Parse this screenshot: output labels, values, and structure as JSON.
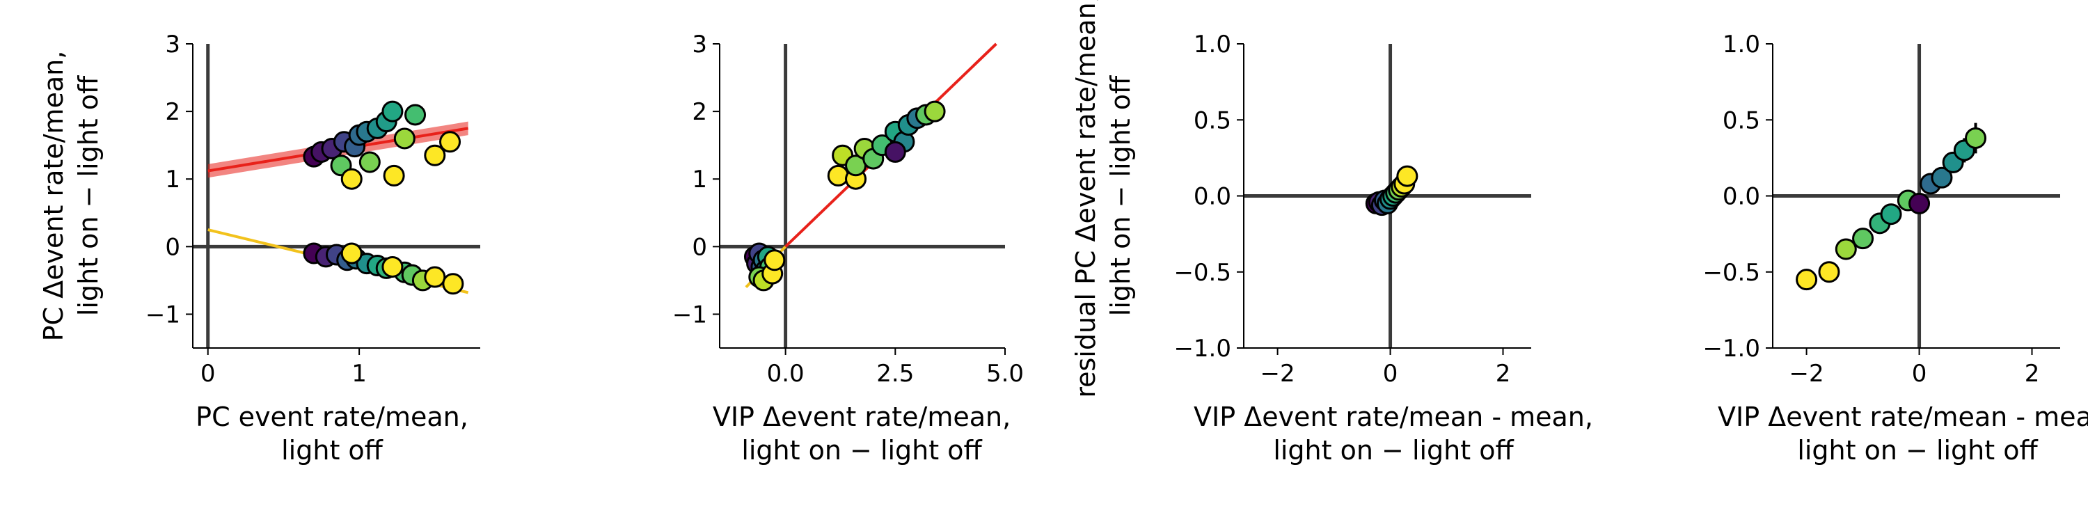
{
  "chart_data": [
    {
      "type": "scatter",
      "xlabel": [
        "PC event rate/mean,",
        "light off"
      ],
      "ylabel": [
        "PC  Δevent rate/mean,",
        "light on − light off"
      ],
      "xlim": [
        -0.1,
        1.8
      ],
      "ylim": [
        -1.5,
        3.0
      ],
      "xticks": [
        0,
        1
      ],
      "xticklabels": [
        "0",
        "1"
      ],
      "yticks": [
        -1,
        0,
        1,
        2,
        3
      ],
      "yticklabels": [
        "−1",
        "0",
        "1",
        "2",
        "3"
      ],
      "zero_lines": true,
      "fit_lines": [
        {
          "x": [
            0.0,
            1.72
          ],
          "y": [
            1.12,
            1.75
          ],
          "color": "#e8211a",
          "band": 0.1
        },
        {
          "x": [
            0.0,
            1.72
          ],
          "y": [
            0.25,
            -0.68
          ],
          "color": "#f2c21c"
        }
      ],
      "series": [
        {
          "values": [
            {
              "x": 0.7,
              "y": 1.33,
              "c": 0.0
            },
            {
              "x": 0.75,
              "y": 1.4,
              "c": 0.05
            },
            {
              "x": 0.82,
              "y": 1.45,
              "c": 0.1
            },
            {
              "x": 0.9,
              "y": 1.55,
              "c": 0.2
            },
            {
              "x": 0.97,
              "y": 1.48,
              "c": 0.3
            },
            {
              "x": 1.0,
              "y": 1.65,
              "c": 0.35
            },
            {
              "x": 1.05,
              "y": 1.7,
              "c": 0.4
            },
            {
              "x": 1.12,
              "y": 1.75,
              "c": 0.5
            },
            {
              "x": 1.18,
              "y": 1.85,
              "c": 0.55
            },
            {
              "x": 1.22,
              "y": 2.0,
              "c": 0.6
            },
            {
              "x": 1.37,
              "y": 1.95,
              "c": 0.7
            },
            {
              "x": 0.88,
              "y": 1.2,
              "c": 0.75
            },
            {
              "x": 1.07,
              "y": 1.25,
              "c": 0.8
            },
            {
              "x": 1.3,
              "y": 1.6,
              "c": 0.85
            },
            {
              "x": 0.95,
              "y": 1.0,
              "c": 1.0
            },
            {
              "x": 1.23,
              "y": 1.05,
              "c": 1.0
            },
            {
              "x": 1.5,
              "y": 1.35,
              "c": 1.0
            },
            {
              "x": 1.6,
              "y": 1.55,
              "c": 1.0
            }
          ]
        },
        {
          "values": [
            {
              "x": 0.7,
              "y": -0.1,
              "c": 0.0
            },
            {
              "x": 0.78,
              "y": -0.15,
              "c": 0.1
            },
            {
              "x": 0.85,
              "y": -0.12,
              "c": 0.2
            },
            {
              "x": 0.92,
              "y": -0.2,
              "c": 0.3
            },
            {
              "x": 0.98,
              "y": -0.18,
              "c": 0.4
            },
            {
              "x": 1.05,
              "y": -0.25,
              "c": 0.5
            },
            {
              "x": 1.12,
              "y": -0.28,
              "c": 0.6
            },
            {
              "x": 1.18,
              "y": -0.32,
              "c": 0.65
            },
            {
              "x": 1.3,
              "y": -0.38,
              "c": 0.7
            },
            {
              "x": 1.35,
              "y": -0.42,
              "c": 0.75
            },
            {
              "x": 1.42,
              "y": -0.5,
              "c": 0.85
            },
            {
              "x": 0.95,
              "y": -0.1,
              "c": 1.0
            },
            {
              "x": 1.22,
              "y": -0.3,
              "c": 1.0
            },
            {
              "x": 1.5,
              "y": -0.45,
              "c": 1.0
            },
            {
              "x": 1.62,
              "y": -0.55,
              "c": 1.0
            }
          ]
        }
      ]
    },
    {
      "type": "scatter",
      "xlabel": [
        "VIP Δevent rate/mean,",
        "light on − light off"
      ],
      "ylabel": [],
      "xlim": [
        -1.5,
        5.0
      ],
      "ylim": [
        -1.5,
        3.0
      ],
      "xticks": [
        0,
        2.5,
        5.0
      ],
      "xticklabels": [
        "0.0",
        "2.5",
        "5.0"
      ],
      "yticks": [
        -1,
        0,
        1,
        2,
        3
      ],
      "yticklabels": [
        "−1",
        "0",
        "1",
        "2",
        "3"
      ],
      "zero_lines": true,
      "fit_lines": [
        {
          "x": [
            -0.9,
            0.0
          ],
          "y": [
            -0.6,
            0.0
          ],
          "color": "#f2c21c"
        },
        {
          "x": [
            0.0,
            4.8
          ],
          "y": [
            0.0,
            3.0
          ],
          "color": "#e8211a"
        }
      ],
      "series": [
        {
          "values": [
            {
              "x": -0.7,
              "y": -0.15,
              "c": 0.0
            },
            {
              "x": -0.65,
              "y": -0.25,
              "c": 0.1
            },
            {
              "x": -0.6,
              "y": -0.1,
              "c": 0.2
            },
            {
              "x": -0.55,
              "y": -0.3,
              "c": 0.3
            },
            {
              "x": -0.5,
              "y": -0.2,
              "c": 0.4
            },
            {
              "x": -0.45,
              "y": -0.35,
              "c": 0.5
            },
            {
              "x": -0.4,
              "y": -0.15,
              "c": 0.6
            },
            {
              "x": -0.35,
              "y": -0.3,
              "c": 0.7
            },
            {
              "x": -0.6,
              "y": -0.45,
              "c": 0.8
            },
            {
              "x": -0.5,
              "y": -0.5,
              "c": 0.9
            },
            {
              "x": -0.3,
              "y": -0.4,
              "c": 1.0
            },
            {
              "x": -0.25,
              "y": -0.2,
              "c": 1.0
            },
            {
              "x": 1.2,
              "y": 1.05,
              "c": 1.0
            },
            {
              "x": 1.6,
              "y": 1.0,
              "c": 1.0
            },
            {
              "x": 1.3,
              "y": 1.35,
              "c": 0.9
            },
            {
              "x": 1.6,
              "y": 1.2,
              "c": 0.8
            },
            {
              "x": 1.8,
              "y": 1.45,
              "c": 0.85
            },
            {
              "x": 2.0,
              "y": 1.3,
              "c": 0.75
            },
            {
              "x": 2.2,
              "y": 1.5,
              "c": 0.7
            },
            {
              "x": 2.5,
              "y": 1.7,
              "c": 0.6
            },
            {
              "x": 2.7,
              "y": 1.55,
              "c": 0.45
            },
            {
              "x": 2.5,
              "y": 1.4,
              "c": 0.05
            },
            {
              "x": 2.8,
              "y": 1.8,
              "c": 0.5
            },
            {
              "x": 3.0,
              "y": 1.9,
              "c": 0.4
            },
            {
              "x": 3.2,
              "y": 1.95,
              "c": 0.75
            },
            {
              "x": 3.4,
              "y": 2.0,
              "c": 0.85
            }
          ]
        }
      ]
    },
    {
      "type": "scatter",
      "xlabel": [
        "VIP Δevent rate/mean - mean,",
        "light on − light off"
      ],
      "ylabel": [
        "residual PC Δevent rate/mean,",
        "light on − light off"
      ],
      "xlim": [
        -2.6,
        2.5
      ],
      "ylim": [
        -1.0,
        1.0
      ],
      "xticks": [
        -2,
        0,
        2
      ],
      "xticklabels": [
        "−2",
        "0",
        "2"
      ],
      "yticks": [
        -1.0,
        -0.5,
        0.0,
        0.5,
        1.0
      ],
      "yticklabels": [
        "−1.0",
        "−0.5",
        "0.0",
        "0.5",
        "1.0"
      ],
      "zero_lines": true,
      "fit_lines": [],
      "series": [
        {
          "values": [
            {
              "x": -0.25,
              "y": -0.05,
              "c": 0.0
            },
            {
              "x": -0.2,
              "y": -0.04,
              "c": 0.1
            },
            {
              "x": -0.15,
              "y": -0.06,
              "c": 0.2
            },
            {
              "x": -0.1,
              "y": -0.03,
              "c": 0.3
            },
            {
              "x": -0.05,
              "y": -0.05,
              "c": 0.4
            },
            {
              "x": 0.0,
              "y": -0.02,
              "c": 0.5
            },
            {
              "x": 0.05,
              "y": 0.0,
              "c": 0.6
            },
            {
              "x": 0.1,
              "y": 0.02,
              "c": 0.7
            },
            {
              "x": 0.15,
              "y": 0.04,
              "c": 0.8
            },
            {
              "x": 0.2,
              "y": 0.06,
              "c": 0.9
            },
            {
              "x": 0.25,
              "y": 0.08,
              "c": 1.0
            },
            {
              "x": 0.3,
              "y": 0.13,
              "c": 1.0
            }
          ]
        }
      ]
    },
    {
      "type": "scatter",
      "xlabel": [
        "VIP Δevent rate/mean - mean,",
        "light on − light off"
      ],
      "ylabel": [],
      "xlim": [
        -2.6,
        2.5
      ],
      "ylim": [
        -1.0,
        1.0
      ],
      "xticks": [
        -2,
        0,
        2
      ],
      "xticklabels": [
        "−2",
        "0",
        "2"
      ],
      "yticks": [
        -1.0,
        -0.5,
        0.0,
        0.5,
        1.0
      ],
      "yticklabels": [
        "−1.0",
        "−0.5",
        "0.0",
        "0.5",
        "1.0"
      ],
      "zero_lines": true,
      "fit_lines": [],
      "series": [
        {
          "values": [
            {
              "x": -2.0,
              "y": -0.55,
              "c": 1.0,
              "err": 0.07
            },
            {
              "x": -1.6,
              "y": -0.5,
              "c": 1.0,
              "err": 0.06
            },
            {
              "x": -1.3,
              "y": -0.35,
              "c": 0.85,
              "err": 0.06
            },
            {
              "x": -1.0,
              "y": -0.28,
              "c": 0.75,
              "err": 0.06
            },
            {
              "x": -0.7,
              "y": -0.18,
              "c": 0.65,
              "err": 0.06
            },
            {
              "x": -0.5,
              "y": -0.12,
              "c": 0.6,
              "err": 0.05
            },
            {
              "x": -0.2,
              "y": -0.03,
              "c": 0.75,
              "err": 0.05
            },
            {
              "x": 0.0,
              "y": -0.05,
              "c": 0.0,
              "err": 0.05
            },
            {
              "x": 0.2,
              "y": 0.08,
              "c": 0.35,
              "err": 0.05
            },
            {
              "x": 0.4,
              "y": 0.12,
              "c": 0.4,
              "err": 0.06
            },
            {
              "x": 0.6,
              "y": 0.22,
              "c": 0.5,
              "err": 0.07
            },
            {
              "x": 0.8,
              "y": 0.3,
              "c": 0.55,
              "err": 0.08
            },
            {
              "x": 1.0,
              "y": 0.38,
              "c": 0.8,
              "err": 0.1
            }
          ]
        }
      ]
    }
  ]
}
